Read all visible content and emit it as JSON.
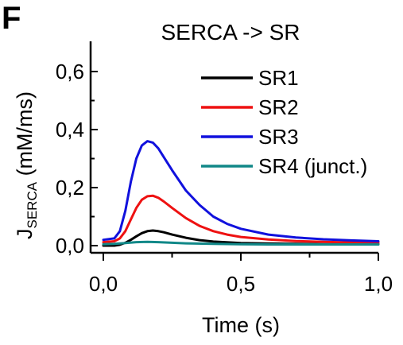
{
  "panel_label": "F",
  "chart_data": {
    "type": "line",
    "title": "SERCA -> SR",
    "xlabel": "Time (s)",
    "ylabel_main": "J",
    "ylabel_sub": "SERCA",
    "ylabel_unit": " (mM/ms)",
    "xlim": [
      -0.02,
      1.0
    ],
    "ylim": [
      -0.02,
      0.7
    ],
    "x_ticks": [
      {
        "value": 0.0,
        "label": "0,0"
      },
      {
        "value": 0.5,
        "label": "0,5"
      },
      {
        "value": 1.0,
        "label": "1,0"
      }
    ],
    "y_ticks": [
      {
        "value": 0.0,
        "label": "0,0"
      },
      {
        "value": 0.2,
        "label": "0,2"
      },
      {
        "value": 0.4,
        "label": "0,4"
      },
      {
        "value": 0.6,
        "label": "0,6"
      }
    ],
    "grid": false,
    "legend_position": "top-right",
    "series": [
      {
        "name": "SR1",
        "color": "#000000",
        "x": [
          0.0,
          0.04,
          0.06,
          0.08,
          0.1,
          0.12,
          0.14,
          0.16,
          0.18,
          0.2,
          0.22,
          0.25,
          0.3,
          0.35,
          0.4,
          0.5,
          0.6,
          0.7,
          0.8,
          0.9,
          1.0
        ],
        "y": [
          0.0,
          0.0,
          0.003,
          0.01,
          0.02,
          0.032,
          0.043,
          0.05,
          0.052,
          0.05,
          0.046,
          0.038,
          0.027,
          0.019,
          0.014,
          0.009,
          0.007,
          0.006,
          0.005,
          0.005,
          0.005
        ]
      },
      {
        "name": "SR2",
        "color": "#ee1111",
        "x": [
          0.0,
          0.04,
          0.06,
          0.08,
          0.1,
          0.12,
          0.14,
          0.16,
          0.18,
          0.2,
          0.22,
          0.25,
          0.3,
          0.35,
          0.4,
          0.45,
          0.5,
          0.6,
          0.7,
          0.8,
          0.9,
          1.0
        ],
        "y": [
          0.012,
          0.015,
          0.025,
          0.05,
          0.09,
          0.13,
          0.158,
          0.17,
          0.172,
          0.165,
          0.152,
          0.13,
          0.095,
          0.068,
          0.05,
          0.038,
          0.03,
          0.021,
          0.016,
          0.013,
          0.011,
          0.01
        ]
      },
      {
        "name": "SR3",
        "color": "#1111dd",
        "x": [
          0.0,
          0.04,
          0.06,
          0.08,
          0.1,
          0.12,
          0.14,
          0.16,
          0.18,
          0.2,
          0.22,
          0.25,
          0.3,
          0.35,
          0.4,
          0.45,
          0.5,
          0.6,
          0.7,
          0.8,
          0.9,
          1.0
        ],
        "y": [
          0.02,
          0.025,
          0.05,
          0.12,
          0.22,
          0.3,
          0.345,
          0.36,
          0.355,
          0.335,
          0.305,
          0.26,
          0.19,
          0.14,
          0.1,
          0.075,
          0.058,
          0.038,
          0.028,
          0.022,
          0.018,
          0.015
        ]
      },
      {
        "name": "SR4 (junct.)",
        "color": "#118888",
        "x": [
          0.0,
          0.04,
          0.08,
          0.12,
          0.16,
          0.2,
          0.25,
          0.3,
          0.4,
          0.5,
          0.6,
          0.7,
          0.8,
          0.9,
          1.0
        ],
        "y": [
          0.005,
          0.006,
          0.009,
          0.012,
          0.013,
          0.012,
          0.01,
          0.008,
          0.006,
          0.005,
          0.004,
          0.004,
          0.004,
          0.004,
          0.004
        ]
      }
    ]
  }
}
